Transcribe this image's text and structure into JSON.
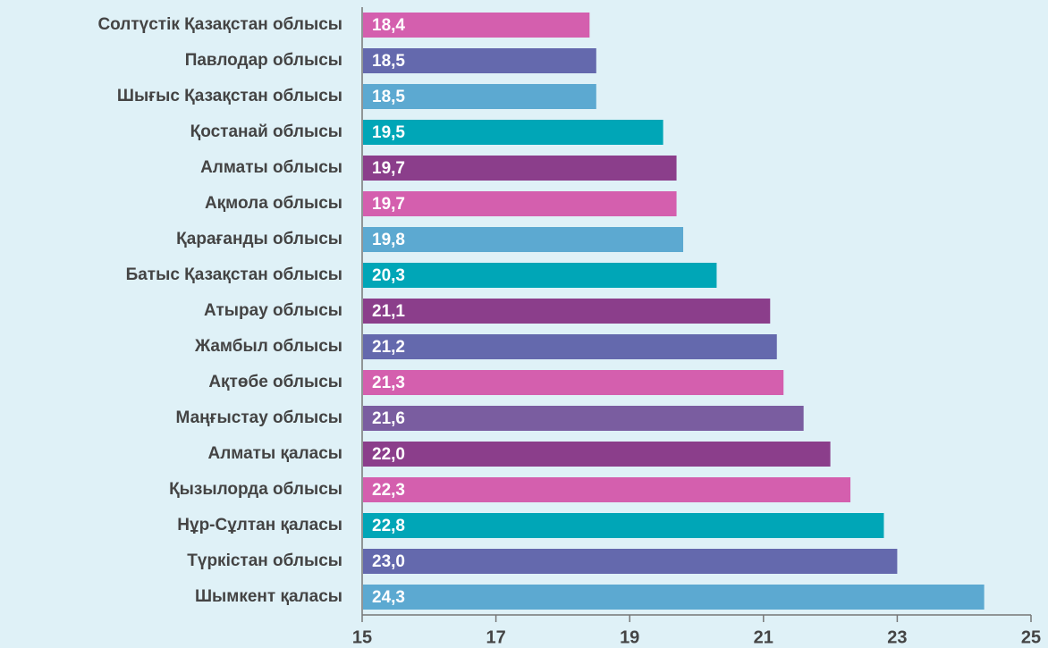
{
  "chart_data": {
    "type": "bar",
    "orientation": "horizontal",
    "categories": [
      "Солтүстік Қазақстан облысы",
      "Павлодар облысы",
      "Шығыс Қазақстан облысы",
      "Қостанай облысы",
      "Алматы облысы",
      "Ақмола облысы",
      "Қарағанды облысы",
      "Батыс Қазақстан облысы",
      "Атырау облысы",
      "Жамбыл облысы",
      "Ақтөбе облысы",
      "Маңғыстау облысы",
      "Алматы қаласы",
      "Қызылорда облысы",
      "Нұр-Сұлтан қаласы",
      "Түркістан облысы",
      "Шымкент қаласы"
    ],
    "values": [
      18.4,
      18.5,
      18.5,
      19.5,
      19.7,
      19.7,
      19.8,
      20.3,
      21.1,
      21.2,
      21.3,
      21.6,
      22.0,
      22.3,
      22.8,
      23.0,
      24.3
    ],
    "value_labels": [
      "18,4",
      "18,5",
      "18,5",
      "19,5",
      "19,7",
      "19,7",
      "19,8",
      "20,3",
      "21,1",
      "21,2",
      "21,3",
      "21,6",
      "22,0",
      "22,3",
      "22,8",
      "23,0",
      "24,3"
    ],
    "colors": [
      "#d45fae",
      "#6469ad",
      "#5ca9d1",
      "#00a6b7",
      "#8b3e8b",
      "#d45fae",
      "#5ca9d1",
      "#00a6b7",
      "#8b3e8b",
      "#6469ad",
      "#d45fae",
      "#7a5da0",
      "#8b3e8b",
      "#d45fae",
      "#00a6b7",
      "#6469ad",
      "#5ca9d1"
    ],
    "xlim": [
      15,
      25
    ],
    "xticks": [
      15,
      17,
      19,
      21,
      23,
      25
    ]
  }
}
